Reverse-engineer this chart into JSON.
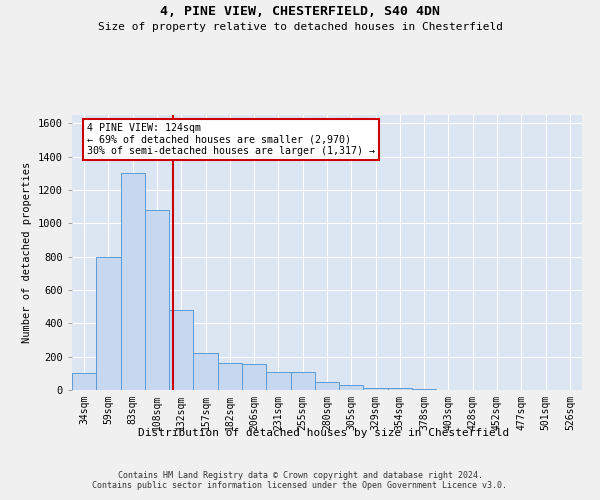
{
  "title1": "4, PINE VIEW, CHESTERFIELD, S40 4DN",
  "title2": "Size of property relative to detached houses in Chesterfield",
  "xlabel": "Distribution of detached houses by size in Chesterfield",
  "ylabel": "Number of detached properties",
  "categories": [
    "34sqm",
    "59sqm",
    "83sqm",
    "108sqm",
    "132sqm",
    "157sqm",
    "182sqm",
    "206sqm",
    "231sqm",
    "255sqm",
    "280sqm",
    "305sqm",
    "329sqm",
    "354sqm",
    "378sqm",
    "403sqm",
    "428sqm",
    "452sqm",
    "477sqm",
    "501sqm",
    "526sqm"
  ],
  "values": [
    100,
    800,
    1300,
    1080,
    480,
    220,
    160,
    155,
    110,
    110,
    50,
    30,
    15,
    12,
    5,
    0,
    0,
    0,
    0,
    0,
    0
  ],
  "bar_color": "#c5d8f0",
  "bar_edge_color": "#5b9bd5",
  "vline_x_index": 3.65,
  "vline_color": "#cc0000",
  "annotation_text": "4 PINE VIEW: 124sqm\n← 69% of detached houses are smaller (2,970)\n30% of semi-detached houses are larger (1,317) →",
  "annotation_box_color": "#ffffff",
  "annotation_box_edge": "#cc0000",
  "ylim": [
    0,
    1650
  ],
  "yticks": [
    0,
    200,
    400,
    600,
    800,
    1000,
    1200,
    1400,
    1600
  ],
  "bg_color": "#dce6f2",
  "fig_bg_color": "#f0f0f0",
  "footnote": "Contains HM Land Registry data © Crown copyright and database right 2024.\nContains public sector information licensed under the Open Government Licence v3.0."
}
